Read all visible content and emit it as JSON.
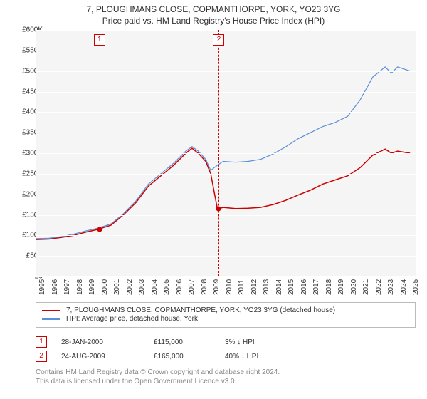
{
  "title": {
    "line1": "7, PLOUGHMANS CLOSE, COPMANTHORPE, YORK, YO23 3YG",
    "line2": "Price paid vs. HM Land Registry's House Price Index (HPI)"
  },
  "chart": {
    "type": "line",
    "background_color": "#f5f5f5",
    "grid_color": "#ffffff",
    "axis_color": "#999999",
    "x": {
      "min": 1995,
      "max": 2025.5,
      "ticks": [
        1995,
        1996,
        1997,
        1998,
        1999,
        2000,
        2001,
        2002,
        2003,
        2004,
        2005,
        2006,
        2007,
        2008,
        2009,
        2010,
        2011,
        2012,
        2013,
        2014,
        2015,
        2016,
        2017,
        2018,
        2019,
        2020,
        2021,
        2022,
        2023,
        2024,
        2025
      ]
    },
    "y": {
      "min": 0,
      "max": 600000,
      "ticks": [
        0,
        50000,
        100000,
        150000,
        200000,
        250000,
        300000,
        350000,
        400000,
        450000,
        500000,
        550000,
        600000
      ],
      "tick_labels": [
        "£0",
        "£50K",
        "£100K",
        "£150K",
        "£200K",
        "£250K",
        "£300K",
        "£350K",
        "£400K",
        "£450K",
        "£500K",
        "£550K",
        "£600K"
      ]
    },
    "series": [
      {
        "id": "property",
        "label": "7, PLOUGHMANS CLOSE, COPMANTHORPE, YORK, YO23 3YG (detached house)",
        "color": "#cc0000",
        "line_width": 1.5,
        "points": [
          [
            1995,
            90000
          ],
          [
            1996,
            91000
          ],
          [
            1997,
            95000
          ],
          [
            1998,
            100000
          ],
          [
            1999,
            108000
          ],
          [
            2000,
            115000
          ],
          [
            2001,
            125000
          ],
          [
            2002,
            150000
          ],
          [
            2003,
            180000
          ],
          [
            2004,
            220000
          ],
          [
            2005,
            245000
          ],
          [
            2006,
            270000
          ],
          [
            2007,
            300000
          ],
          [
            2007.5,
            312000
          ],
          [
            2008,
            300000
          ],
          [
            2008.6,
            280000
          ],
          [
            2009,
            250000
          ],
          [
            2009.5,
            170000
          ],
          [
            2009.65,
            165000
          ],
          [
            2010,
            168000
          ],
          [
            2011,
            165000
          ],
          [
            2012,
            166000
          ],
          [
            2013,
            168000
          ],
          [
            2014,
            175000
          ],
          [
            2015,
            185000
          ],
          [
            2016,
            198000
          ],
          [
            2017,
            210000
          ],
          [
            2018,
            225000
          ],
          [
            2019,
            235000
          ],
          [
            2020,
            245000
          ],
          [
            2021,
            265000
          ],
          [
            2022,
            295000
          ],
          [
            2023,
            310000
          ],
          [
            2023.5,
            300000
          ],
          [
            2024,
            305000
          ],
          [
            2025,
            300000
          ]
        ]
      },
      {
        "id": "hpi",
        "label": "HPI: Average price, detached house, York",
        "color": "#5b8fd6",
        "line_width": 1.2,
        "points": [
          [
            1995,
            92000
          ],
          [
            1996,
            93000
          ],
          [
            1997,
            97000
          ],
          [
            1998,
            103000
          ],
          [
            1999,
            111000
          ],
          [
            2000,
            118000
          ],
          [
            2001,
            128000
          ],
          [
            2002,
            153000
          ],
          [
            2003,
            184000
          ],
          [
            2004,
            225000
          ],
          [
            2005,
            250000
          ],
          [
            2006,
            275000
          ],
          [
            2007,
            305000
          ],
          [
            2007.5,
            316000
          ],
          [
            2008,
            305000
          ],
          [
            2008.6,
            285000
          ],
          [
            2009,
            258000
          ],
          [
            2009.5,
            270000
          ],
          [
            2010,
            280000
          ],
          [
            2011,
            278000
          ],
          [
            2012,
            280000
          ],
          [
            2013,
            285000
          ],
          [
            2014,
            298000
          ],
          [
            2015,
            315000
          ],
          [
            2016,
            335000
          ],
          [
            2017,
            350000
          ],
          [
            2018,
            365000
          ],
          [
            2019,
            375000
          ],
          [
            2020,
            390000
          ],
          [
            2021,
            430000
          ],
          [
            2022,
            485000
          ],
          [
            2023,
            510000
          ],
          [
            2023.5,
            495000
          ],
          [
            2024,
            510000
          ],
          [
            2025,
            500000
          ]
        ]
      }
    ],
    "markers": [
      {
        "n": "1",
        "year": 2000.07,
        "price": 115000
      },
      {
        "n": "2",
        "year": 2009.65,
        "price": 165000
      }
    ]
  },
  "legend": {
    "rows": [
      {
        "color": "#cc0000",
        "text": "7, PLOUGHMANS CLOSE, COPMANTHORPE, YORK, YO23 3YG (detached house)"
      },
      {
        "color": "#5b8fd6",
        "text": "HPI: Average price, detached house, York"
      }
    ]
  },
  "sales": [
    {
      "n": "1",
      "date": "28-JAN-2000",
      "price": "£115,000",
      "hpi": "3% ↓ HPI"
    },
    {
      "n": "2",
      "date": "24-AUG-2009",
      "price": "£165,000",
      "hpi": "40% ↓ HPI"
    }
  ],
  "footer": {
    "line1": "Contains HM Land Registry data © Crown copyright and database right 2024.",
    "line2": "This data is licensed under the Open Government Licence v3.0."
  }
}
